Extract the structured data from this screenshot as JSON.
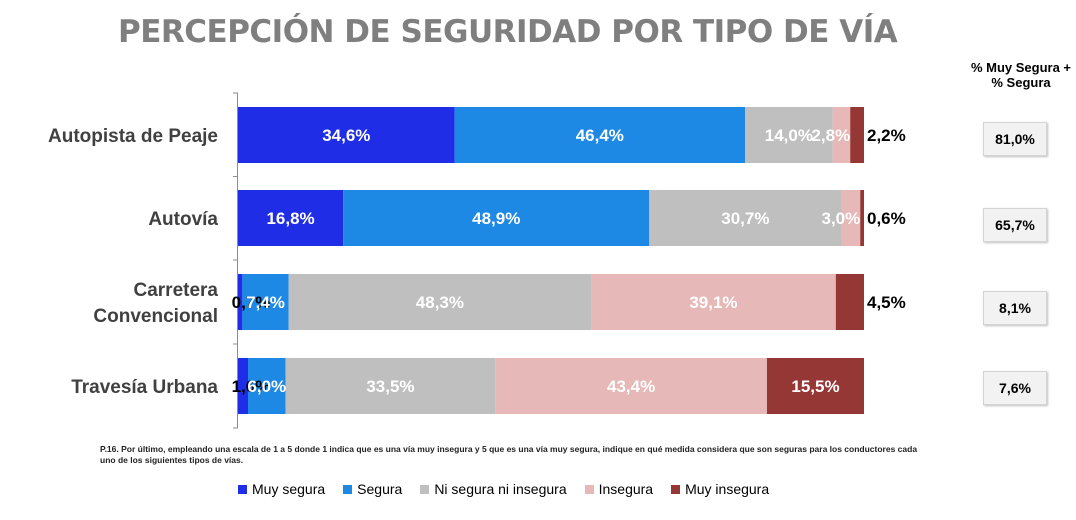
{
  "chart_data": {
    "type": "bar",
    "orientation": "horizontal",
    "stacked": true,
    "title": "PERCEPCIÓN DE SEGURIDAD POR TIPO DE VÍA",
    "categories": [
      "Autopista de Peaje",
      "Autovía",
      "Carretera Convencional",
      "Travesía Urbana"
    ],
    "category_lines": [
      [
        "Autopista de Peaje"
      ],
      [
        "Autovía"
      ],
      [
        "Carretera",
        "Convencional"
      ],
      [
        "Travesía Urbana"
      ]
    ],
    "series": [
      {
        "name": "Muy segura",
        "color": "#1f2ee6",
        "values": [
          34.6,
          16.8,
          0.7,
          1.6
        ],
        "labels": [
          "34,6%",
          "16,8%",
          "0,7%",
          "1,6%"
        ]
      },
      {
        "name": "Segura",
        "color": "#1e88e5",
        "values": [
          46.4,
          48.9,
          7.4,
          6.0
        ],
        "labels": [
          "46,4%",
          "48,9%",
          "7,4%",
          "6,0%"
        ]
      },
      {
        "name": "Ni segura ni insegura",
        "color": "#bfbfbf",
        "values": [
          14.0,
          30.7,
          48.3,
          33.5
        ],
        "labels": [
          "14,0%",
          "30,7%",
          "48,3%",
          "33,5%"
        ]
      },
      {
        "name": "Insegura",
        "color": "#e6b8b7",
        "values": [
          2.8,
          3.0,
          39.1,
          43.4
        ],
        "labels": [
          "2,8%",
          "3,0%",
          "39,1%",
          "43,4%"
        ]
      },
      {
        "name": "Muy insegura",
        "color": "#953735",
        "values": [
          2.2,
          0.6,
          4.5,
          15.5
        ],
        "labels": [
          "2,2%",
          "0,6%",
          "4,5%",
          "15,5%"
        ]
      }
    ],
    "xlim": [
      0,
      100
    ],
    "legend_position": "bottom",
    "grid": false
  },
  "side_panel": {
    "header_line1": "% Muy Segura +",
    "header_line2": "% Segura",
    "values": [
      "81,0%",
      "65,7%",
      "8,1%",
      "7,6%"
    ]
  },
  "footnote": "P.16. Por último, empleando una escala de 1 a 5 donde 1 indica que es una vía muy insegura y 5 que es una vía muy segura, indique en qué medida considera que son seguras para los conductores cada uno de los siguientes tipos de vías."
}
